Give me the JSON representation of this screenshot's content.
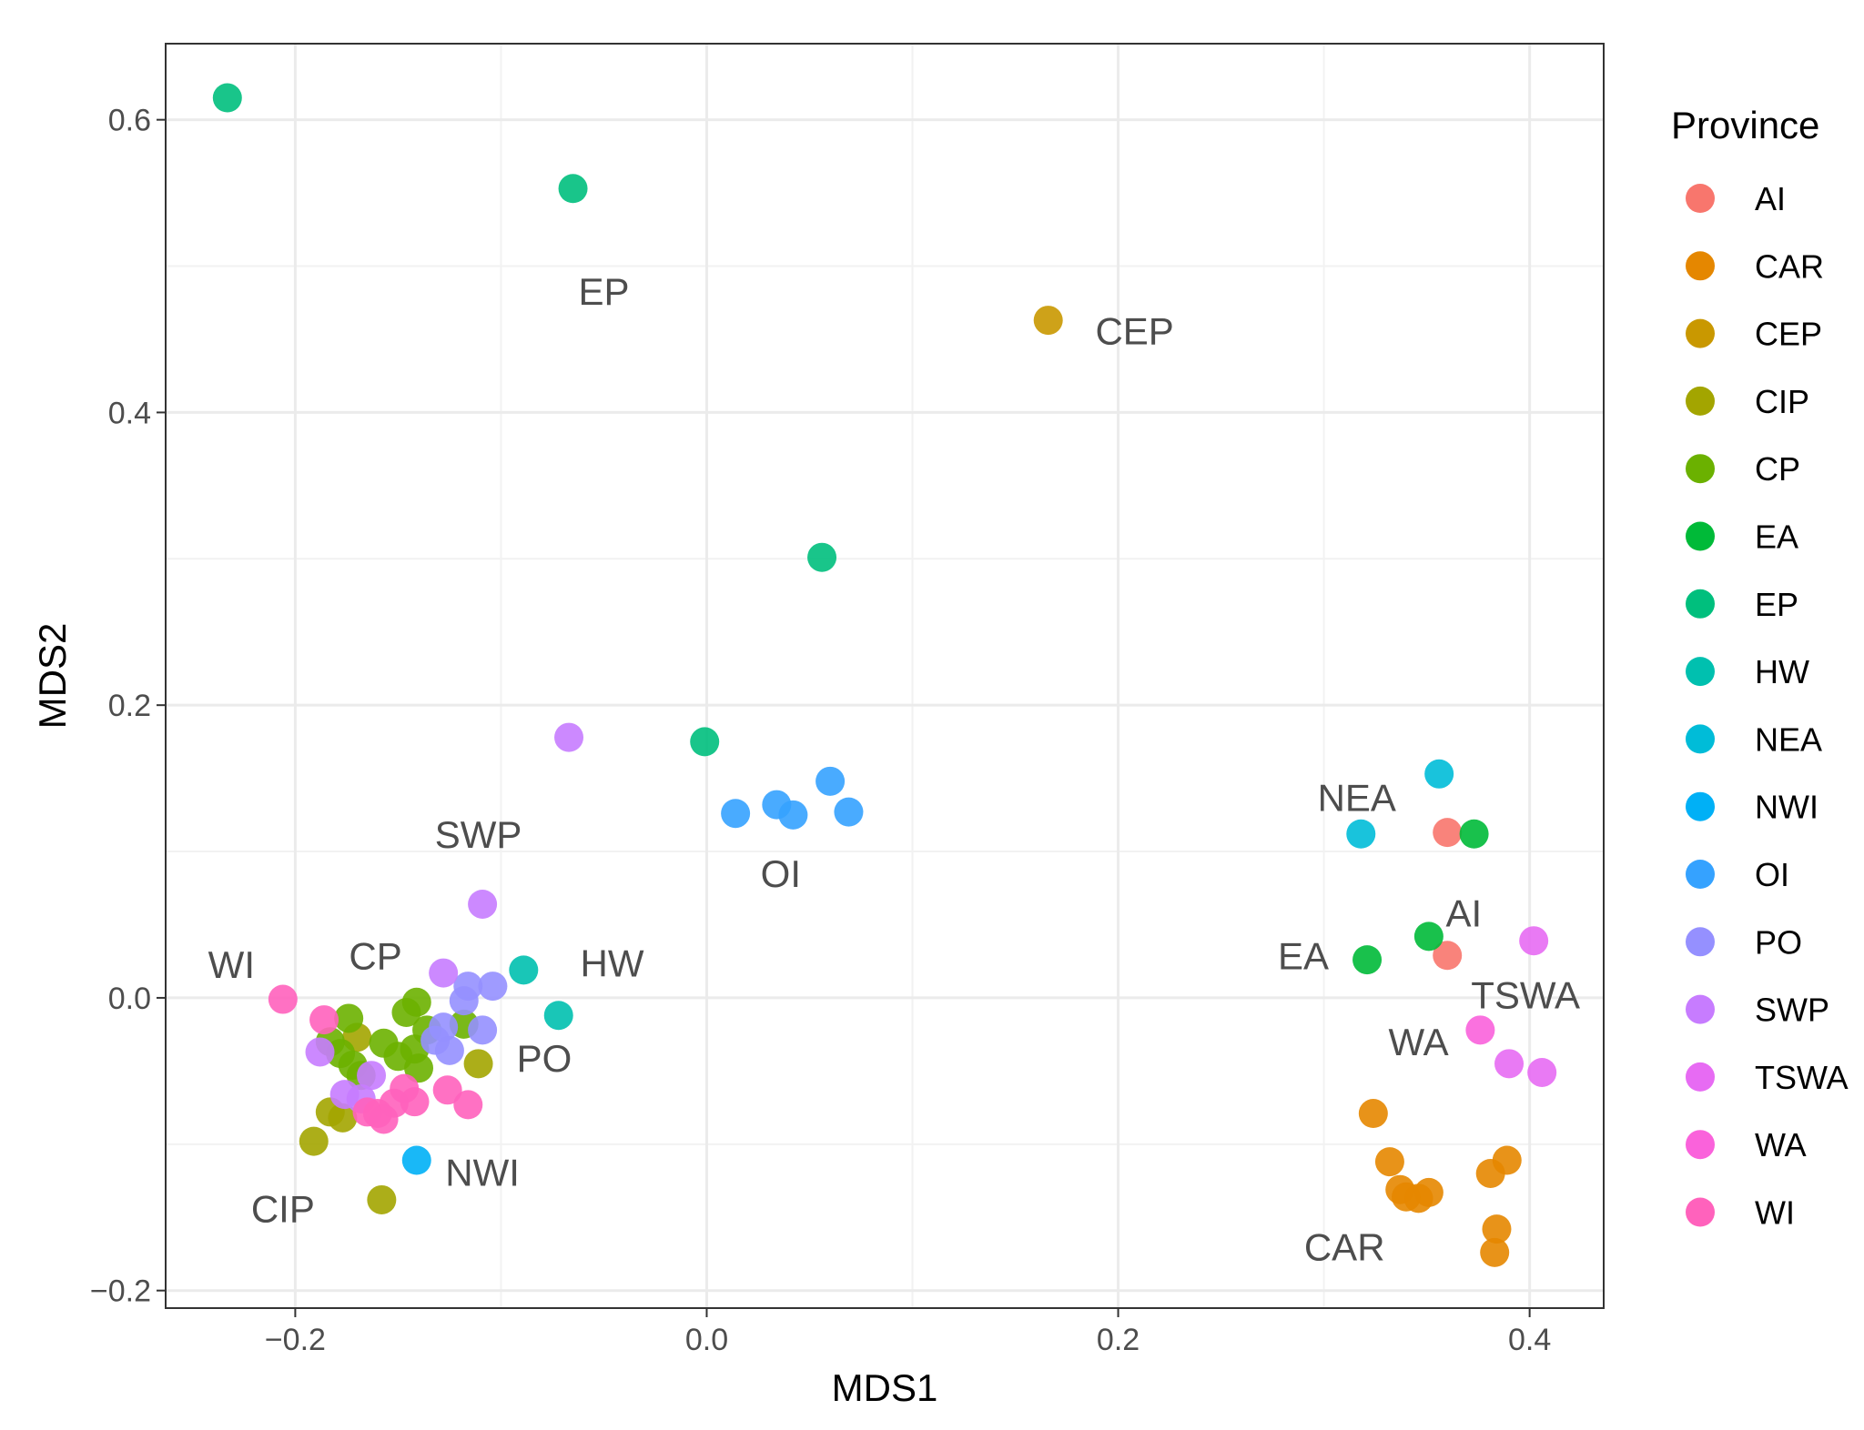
{
  "chart_data": {
    "type": "scatter",
    "title": "",
    "xlabel": "MDS1",
    "ylabel": "MDS2",
    "xlim": [
      -0.263,
      0.436
    ],
    "ylim": [
      -0.212,
      0.652
    ],
    "x_ticks": [
      {
        "value": -0.2,
        "label": "−0.2"
      },
      {
        "value": 0.0,
        "label": "0.0"
      },
      {
        "value": 0.2,
        "label": "0.2"
      },
      {
        "value": 0.4,
        "label": "0.4"
      }
    ],
    "y_ticks": [
      {
        "value": -0.2,
        "label": "−0.2"
      },
      {
        "value": 0.0,
        "label": "0.0"
      },
      {
        "value": 0.2,
        "label": "0.2"
      },
      {
        "value": 0.4,
        "label": "0.4"
      },
      {
        "value": 0.6,
        "label": "0.6"
      }
    ],
    "grid": true,
    "legend_title": "Province",
    "legend_position": "right",
    "series": [
      {
        "name": "AI",
        "color": "#F8766D",
        "points": [
          [
            0.36,
            0.113
          ],
          [
            0.36,
            0.029
          ]
        ]
      },
      {
        "name": "CAR",
        "color": "#E58700",
        "points": [
          [
            0.324,
            -0.079
          ],
          [
            0.332,
            -0.112
          ],
          [
            0.337,
            -0.131
          ],
          [
            0.34,
            -0.136
          ],
          [
            0.346,
            -0.137
          ],
          [
            0.351,
            -0.133
          ],
          [
            0.381,
            -0.12
          ],
          [
            0.389,
            -0.111
          ],
          [
            0.384,
            -0.158
          ],
          [
            0.383,
            -0.174
          ]
        ]
      },
      {
        "name": "CEP",
        "color": "#C99800",
        "points": [
          [
            0.166,
            0.463
          ]
        ]
      },
      {
        "name": "CIP",
        "color": "#A3A500",
        "points": [
          [
            -0.17,
            -0.027
          ],
          [
            -0.183,
            -0.078
          ],
          [
            -0.177,
            -0.082
          ],
          [
            -0.191,
            -0.098
          ],
          [
            -0.158,
            -0.138
          ],
          [
            -0.111,
            -0.045
          ]
        ]
      },
      {
        "name": "CP",
        "color": "#6BB100",
        "points": [
          [
            -0.174,
            -0.014
          ],
          [
            -0.183,
            -0.03
          ],
          [
            -0.178,
            -0.038
          ],
          [
            -0.172,
            -0.046
          ],
          [
            -0.168,
            -0.053
          ],
          [
            -0.157,
            -0.031
          ],
          [
            -0.15,
            -0.04
          ],
          [
            -0.146,
            -0.01
          ],
          [
            -0.141,
            -0.003
          ],
          [
            -0.136,
            -0.022
          ],
          [
            -0.142,
            -0.035
          ],
          [
            -0.14,
            -0.048
          ],
          [
            -0.118,
            -0.018
          ]
        ]
      },
      {
        "name": "EA",
        "color": "#00BA38",
        "points": [
          [
            0.373,
            0.112
          ],
          [
            0.351,
            0.042
          ],
          [
            0.321,
            0.026
          ]
        ]
      },
      {
        "name": "EP",
        "color": "#00BF7D",
        "points": [
          [
            -0.233,
            0.615
          ],
          [
            -0.065,
            0.553
          ],
          [
            0.056,
            0.301
          ],
          [
            -0.001,
            0.175
          ]
        ]
      },
      {
        "name": "HW",
        "color": "#00C0AF",
        "points": [
          [
            -0.089,
            0.019
          ],
          [
            -0.072,
            -0.012
          ]
        ]
      },
      {
        "name": "NEA",
        "color": "#00BCD8",
        "points": [
          [
            0.356,
            0.153
          ],
          [
            0.318,
            0.112
          ]
        ]
      },
      {
        "name": "NWI",
        "color": "#00B0F6",
        "points": [
          [
            -0.141,
            -0.111
          ]
        ]
      },
      {
        "name": "OI",
        "color": "#35A2FF",
        "points": [
          [
            0.06,
            0.148
          ],
          [
            0.069,
            0.127
          ],
          [
            0.034,
            0.132
          ],
          [
            0.042,
            0.125
          ],
          [
            0.014,
            0.126
          ]
        ]
      },
      {
        "name": "PO",
        "color": "#9590FF",
        "points": [
          [
            -0.104,
            0.008
          ],
          [
            -0.116,
            0.008
          ],
          [
            -0.118,
            -0.002
          ],
          [
            -0.109,
            -0.022
          ],
          [
            -0.128,
            -0.02
          ],
          [
            -0.132,
            -0.029
          ],
          [
            -0.125,
            -0.036
          ]
        ]
      },
      {
        "name": "SWP",
        "color": "#C77CFF",
        "points": [
          [
            -0.067,
            0.178
          ],
          [
            -0.109,
            0.064
          ],
          [
            -0.128,
            0.017
          ],
          [
            -0.188,
            -0.037
          ],
          [
            -0.176,
            -0.066
          ],
          [
            -0.168,
            -0.069
          ],
          [
            -0.163,
            -0.053
          ]
        ]
      },
      {
        "name": "TSWA",
        "color": "#E76BF3",
        "points": [
          [
            0.402,
            0.039
          ],
          [
            0.406,
            -0.051
          ],
          [
            0.39,
            -0.045
          ]
        ]
      },
      {
        "name": "WA",
        "color": "#FA62DB",
        "points": [
          [
            0.376,
            -0.022
          ]
        ]
      },
      {
        "name": "WI",
        "color": "#FF62BC",
        "points": [
          [
            -0.206,
            -0.001
          ],
          [
            -0.186,
            -0.015
          ],
          [
            -0.147,
            -0.062
          ],
          [
            -0.142,
            -0.071
          ],
          [
            -0.126,
            -0.063
          ],
          [
            -0.116,
            -0.073
          ],
          [
            -0.152,
            -0.072
          ],
          [
            -0.16,
            -0.079
          ],
          [
            -0.157,
            -0.083
          ],
          [
            -0.165,
            -0.078
          ]
        ]
      }
    ],
    "annotations": [
      {
        "text": "EP",
        "x": -0.05,
        "y": 0.483
      },
      {
        "text": "CEP",
        "x": 0.208,
        "y": 0.456
      },
      {
        "text": "SWP",
        "x": -0.111,
        "y": 0.112
      },
      {
        "text": "OI",
        "x": 0.036,
        "y": 0.085
      },
      {
        "text": "WI",
        "x": -0.231,
        "y": 0.023
      },
      {
        "text": "CP",
        "x": -0.161,
        "y": 0.029
      },
      {
        "text": "HW",
        "x": -0.046,
        "y": 0.024
      },
      {
        "text": "PO",
        "x": -0.079,
        "y": -0.041
      },
      {
        "text": "NWI",
        "x": -0.109,
        "y": -0.119
      },
      {
        "text": "CIP",
        "x": -0.206,
        "y": -0.144
      },
      {
        "text": "NEA",
        "x": 0.316,
        "y": 0.137
      },
      {
        "text": "AI",
        "x": 0.368,
        "y": 0.058
      },
      {
        "text": "EA",
        "x": 0.29,
        "y": 0.029
      },
      {
        "text": "TSWA",
        "x": 0.398,
        "y": 0.002
      },
      {
        "text": "WA",
        "x": 0.346,
        "y": -0.03
      },
      {
        "text": "CAR",
        "x": 0.31,
        "y": -0.17
      }
    ]
  }
}
